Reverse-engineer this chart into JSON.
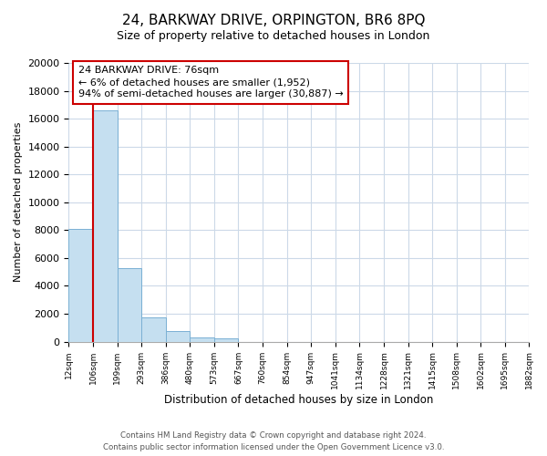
{
  "title": "24, BARKWAY DRIVE, ORPINGTON, BR6 8PQ",
  "subtitle": "Size of property relative to detached houses in London",
  "bar_values": [
    8100,
    16600,
    5300,
    1750,
    750,
    280,
    230,
    0,
    0,
    0,
    0,
    0,
    0,
    0,
    0,
    0,
    0,
    0,
    0
  ],
  "x_labels": [
    "12sqm",
    "106sqm",
    "199sqm",
    "293sqm",
    "386sqm",
    "480sqm",
    "573sqm",
    "667sqm",
    "760sqm",
    "854sqm",
    "947sqm",
    "1041sqm",
    "1134sqm",
    "1228sqm",
    "1321sqm",
    "1415sqm",
    "1508sqm",
    "1602sqm",
    "1695sqm",
    "1882sqm"
  ],
  "bar_color": "#c5dff0",
  "bar_edge_color": "#7ab0d4",
  "marker_line_color": "#cc0000",
  "ylabel": "Number of detached properties",
  "xlabel": "Distribution of detached houses by size in London",
  "ylim": [
    0,
    20000
  ],
  "yticks": [
    0,
    2000,
    4000,
    6000,
    8000,
    10000,
    12000,
    14000,
    16000,
    18000,
    20000
  ],
  "annotation_title": "24 BARKWAY DRIVE: 76sqm",
  "annotation_line1": "← 6% of detached houses are smaller (1,952)",
  "annotation_line2": "94% of semi-detached houses are larger (30,887) →",
  "footer_line1": "Contains HM Land Registry data © Crown copyright and database right 2024.",
  "footer_line2": "Contains public sector information licensed under the Open Government Licence v3.0.",
  "background_color": "#ffffff",
  "grid_color": "#ccd9e8"
}
